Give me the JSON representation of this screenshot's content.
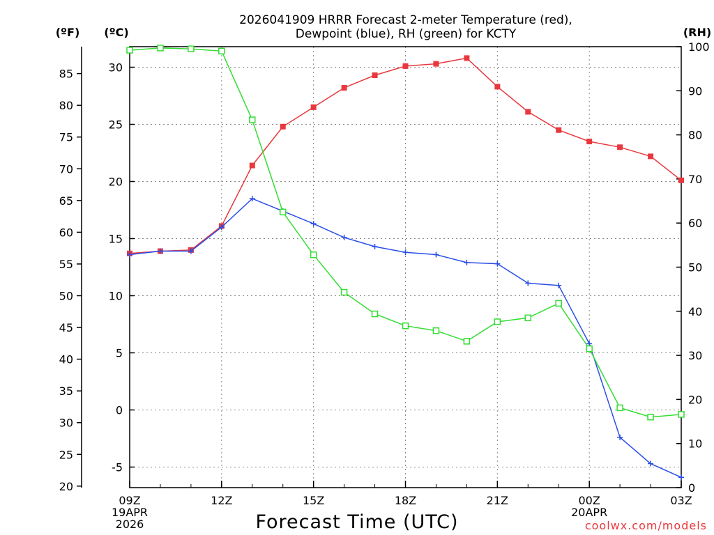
{
  "chart_data": {
    "type": "line",
    "title": [
      "2026041909 HRRR Forecast 2-meter Temperature (red),",
      "Dewpoint (blue), RH (green) for KCTY"
    ],
    "xlabel": "Forecast Time (UTC)",
    "credit": "coolwx.com/models",
    "unit_labels": {
      "fahrenheit": "(ºF)",
      "celsius": "(ºC)",
      "rh": "(RH)"
    },
    "x_hours": [
      0,
      1,
      2,
      3,
      4,
      5,
      6,
      7,
      8,
      9,
      10,
      11,
      12,
      13,
      14,
      15,
      16,
      17,
      18
    ],
    "x_ticks": [
      {
        "hour": 0,
        "lines": [
          "09Z",
          "19APR",
          "2026"
        ]
      },
      {
        "hour": 3,
        "lines": [
          "12Z"
        ]
      },
      {
        "hour": 6,
        "lines": [
          "15Z"
        ]
      },
      {
        "hour": 9,
        "lines": [
          "18Z"
        ]
      },
      {
        "hour": 12,
        "lines": [
          "21Z"
        ]
      },
      {
        "hour": 15,
        "lines": [
          "00Z",
          "20APR"
        ]
      },
      {
        "hour": 18,
        "lines": [
          "03Z"
        ]
      }
    ],
    "xlim": [
      0,
      18
    ],
    "celsius_axis": {
      "ylim": [
        -6.8,
        31.8
      ],
      "ticks": [
        -5,
        0,
        5,
        10,
        15,
        20,
        25,
        30
      ]
    },
    "fahrenheit_axis": {
      "ticks": [
        20,
        25,
        30,
        35,
        40,
        45,
        50,
        55,
        60,
        65,
        70,
        75,
        80,
        85
      ]
    },
    "rh_axis": {
      "ylim": [
        0,
        100
      ],
      "ticks": [
        0,
        10,
        20,
        30,
        40,
        50,
        60,
        70,
        80,
        90,
        100
      ]
    },
    "grid": true,
    "series": [
      {
        "name": "Temperature",
        "axis": "celsius",
        "color": "#e8383d",
        "marker": "filled-square",
        "values": [
          13.7,
          13.9,
          14.0,
          16.1,
          21.4,
          24.8,
          26.5,
          28.2,
          29.3,
          30.1,
          30.3,
          30.8,
          28.3,
          26.1,
          24.5,
          23.5,
          23.0,
          22.2,
          20.1
        ]
      },
      {
        "name": "Dewpoint",
        "axis": "celsius",
        "color": "#2a4ee8",
        "marker": "plus",
        "values": [
          13.6,
          13.9,
          13.9,
          16.0,
          18.5,
          17.4,
          16.3,
          15.1,
          14.3,
          13.8,
          13.6,
          12.9,
          12.8,
          11.1,
          10.9,
          5.8,
          -2.4,
          -4.7,
          -5.9
        ]
      },
      {
        "name": "RH",
        "axis": "rh",
        "color": "#33dd33",
        "marker": "open-square",
        "values": [
          99.2,
          99.7,
          99.5,
          99.0,
          83.4,
          62.5,
          52.8,
          44.3,
          39.4,
          36.7,
          35.6,
          33.2,
          37.6,
          38.5,
          41.8,
          31.5,
          18.1,
          16.0,
          16.6
        ]
      }
    ]
  }
}
